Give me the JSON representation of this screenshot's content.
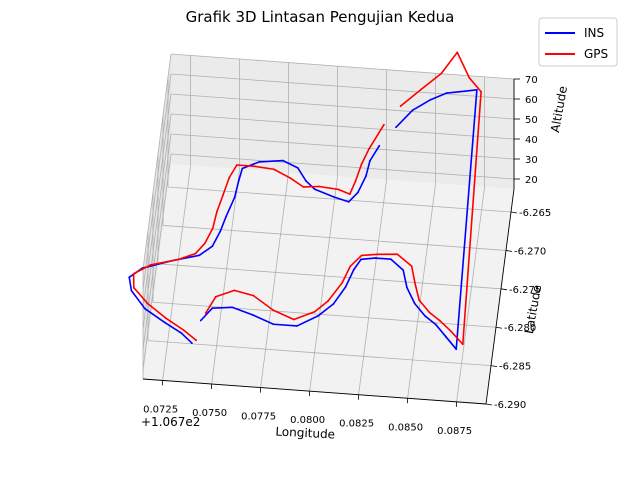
{
  "chart_data": {
    "type": "line",
    "projection": "3d",
    "title": "Grafik 3D Lintasan Pengujian Kedua",
    "xlabel": "Longitude",
    "ylabel": "Latitude",
    "zlabel": "Altitude",
    "x_offset_label": "+1.067e2",
    "x_ticks": [
      "0.0725",
      "0.0750",
      "0.0775",
      "0.0800",
      "0.0825",
      "0.0850",
      "0.0875"
    ],
    "y_ticks": [
      "-6.265",
      "-6.270",
      "-6.275",
      "-6.280",
      "-6.285",
      "-6.290"
    ],
    "z_ticks": [
      "20",
      "30",
      "40",
      "50",
      "60",
      "70"
    ],
    "grid": true,
    "legend_position": "top-right",
    "series": [
      {
        "name": "INS",
        "color": "#0000ff",
        "points": [
          [
            0.0738,
            -6.2862,
            20
          ],
          [
            0.0732,
            -6.285,
            20
          ],
          [
            0.0723,
            -6.2838,
            20
          ],
          [
            0.0712,
            -6.2822,
            20
          ],
          [
            0.0704,
            -6.28,
            20
          ],
          [
            0.0702,
            -6.2783,
            20
          ],
          [
            0.0708,
            -6.277,
            20
          ],
          [
            0.0722,
            -6.2758,
            20
          ],
          [
            0.0736,
            -6.2748,
            20
          ],
          [
            0.0742,
            -6.2735,
            20
          ],
          [
            0.0745,
            -6.2715,
            20
          ],
          [
            0.0747,
            -6.2695,
            20
          ],
          [
            0.075,
            -6.267,
            20
          ],
          [
            0.0751,
            -6.2648,
            20
          ],
          [
            0.0752,
            -6.2632,
            20
          ],
          [
            0.076,
            -6.2622,
            20
          ],
          [
            0.0772,
            -6.2618,
            20
          ],
          [
            0.078,
            -6.2626,
            20
          ],
          [
            0.0785,
            -6.2642,
            20
          ],
          [
            0.079,
            -6.2652,
            20
          ],
          [
            0.08,
            -6.266,
            20
          ],
          [
            0.0808,
            -6.2665,
            20
          ],
          [
            0.0812,
            -6.2652,
            20
          ],
          [
            0.0815,
            -6.263,
            20
          ],
          [
            0.0816,
            -6.261,
            20
          ],
          [
            0.082,
            -6.2595,
            22
          ],
          [
            0.0828,
            -6.2585,
            28
          ],
          [
            0.0836,
            -6.2577,
            34
          ],
          [
            0.0845,
            -6.2572,
            38
          ],
          [
            0.0853,
            -6.2567,
            40
          ],
          [
            0.0862,
            -6.2563,
            40
          ],
          [
            0.0868,
            -6.256,
            40
          ],
          [
            0.0872,
            -6.2845,
            20
          ],
          [
            0.0866,
            -6.283,
            20
          ],
          [
            0.086,
            -6.2815,
            20
          ],
          [
            0.0854,
            -6.2805,
            20
          ],
          [
            0.0848,
            -6.279,
            20
          ],
          [
            0.0843,
            -6.277,
            20
          ],
          [
            0.084,
            -6.2748,
            20
          ],
          [
            0.0833,
            -6.2735,
            20
          ],
          [
            0.0825,
            -6.2735,
            20
          ],
          [
            0.0818,
            -6.2738,
            20
          ],
          [
            0.0815,
            -6.2752,
            20
          ],
          [
            0.0812,
            -6.2775,
            20
          ],
          [
            0.0807,
            -6.2798,
            20
          ],
          [
            0.08,
            -6.2815,
            20
          ],
          [
            0.079,
            -6.283,
            20
          ],
          [
            0.0778,
            -6.283,
            20
          ],
          [
            0.0767,
            -6.282,
            20
          ],
          [
            0.0756,
            -6.2812,
            20
          ],
          [
            0.0746,
            -6.2815,
            20
          ],
          [
            0.0741,
            -6.2832,
            20
          ]
        ]
      },
      {
        "name": "GPS",
        "color": "#ff0000",
        "points": [
          [
            0.074,
            -6.2858,
            20
          ],
          [
            0.0733,
            -6.2846,
            20
          ],
          [
            0.0723,
            -6.2832,
            20
          ],
          [
            0.0713,
            -6.2815,
            20
          ],
          [
            0.0705,
            -6.2796,
            20
          ],
          [
            0.0704,
            -6.2778,
            20
          ],
          [
            0.0712,
            -6.2765,
            20
          ],
          [
            0.0726,
            -6.2755,
            20
          ],
          [
            0.0734,
            -6.2746,
            20
          ],
          [
            0.0738,
            -6.2732,
            20
          ],
          [
            0.0741,
            -6.2712,
            20
          ],
          [
            0.0742,
            -6.269,
            20
          ],
          [
            0.0744,
            -6.2668,
            20
          ],
          [
            0.0746,
            -6.2645,
            20
          ],
          [
            0.0749,
            -6.2628,
            20
          ],
          [
            0.0758,
            -6.2628,
            20
          ],
          [
            0.0768,
            -6.263,
            20
          ],
          [
            0.0777,
            -6.264,
            20
          ],
          [
            0.0784,
            -6.265,
            20
          ],
          [
            0.0792,
            -6.2648,
            20
          ],
          [
            0.0802,
            -6.265,
            20
          ],
          [
            0.0808,
            -6.2655,
            20
          ],
          [
            0.081,
            -6.2638,
            20
          ],
          [
            0.0812,
            -6.2615,
            20
          ],
          [
            0.0815,
            -6.26,
            22
          ],
          [
            0.0822,
            -6.2588,
            30
          ],
          [
            0.083,
            -6.2578,
            36
          ],
          [
            0.084,
            -6.257,
            42
          ],
          [
            0.085,
            -6.2563,
            48
          ],
          [
            0.0858,
            -6.256,
            58
          ],
          [
            0.0864,
            -6.2558,
            45
          ],
          [
            0.087,
            -6.2557,
            38
          ],
          [
            0.0875,
            -6.2838,
            20
          ],
          [
            0.0868,
            -6.2822,
            20
          ],
          [
            0.0862,
            -6.281,
            20
          ],
          [
            0.0856,
            -6.28,
            20
          ],
          [
            0.085,
            -6.2785,
            20
          ],
          [
            0.0847,
            -6.2765,
            20
          ],
          [
            0.0844,
            -6.2742,
            20
          ],
          [
            0.0836,
            -6.2728,
            20
          ],
          [
            0.0826,
            -6.273,
            20
          ],
          [
            0.0818,
            -6.2733,
            20
          ],
          [
            0.0813,
            -6.2748,
            20
          ],
          [
            0.081,
            -6.277,
            20
          ],
          [
            0.0804,
            -6.2795,
            20
          ],
          [
            0.0798,
            -6.281,
            20
          ],
          [
            0.0788,
            -6.2822,
            20
          ],
          [
            0.0777,
            -6.2812,
            20
          ],
          [
            0.0766,
            -6.2795,
            20
          ],
          [
            0.0756,
            -6.279,
            20
          ],
          [
            0.0747,
            -6.28,
            20
          ],
          [
            0.0743,
            -6.2822,
            20
          ]
        ]
      }
    ]
  }
}
